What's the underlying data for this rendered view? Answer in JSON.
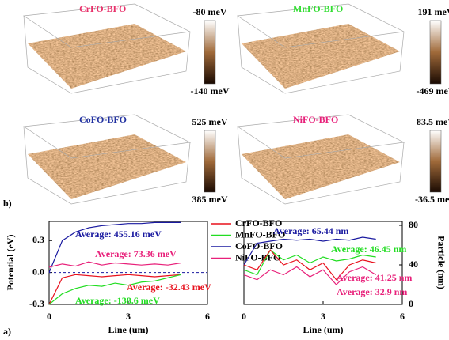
{
  "panels": [
    {
      "title": "CrFO-BFO",
      "title_color": "#e8306a",
      "colorbar": {
        "top": "-80 meV",
        "bottom": "-140 meV"
      }
    },
    {
      "title": "MnFO-BFO",
      "title_color": "#33dd33",
      "colorbar": {
        "top": "191 meV",
        "bottom": "-469 meV"
      }
    },
    {
      "title": "CoFO-BFO",
      "title_color": "#2030a0",
      "colorbar": {
        "top": "525 meV",
        "bottom": "385 meV"
      }
    },
    {
      "title": "NiFO-BFO",
      "title_color": "#e8207a",
      "colorbar": {
        "top": "83.5 meV",
        "bottom": "-36.5 meV"
      }
    }
  ],
  "figure_labels": [
    "b)",
    "a)"
  ],
  "chart_data": [
    {
      "type": "line",
      "x_label": "Line (um)",
      "y_label": "Potential (eV)",
      "x": [
        0,
        0.5,
        1,
        1.5,
        2,
        2.5,
        3,
        3.5,
        4,
        4.5,
        5
      ],
      "xlim": [
        0,
        6
      ],
      "xticks": [
        0,
        3,
        6
      ],
      "ylim": [
        -0.3,
        0.48
      ],
      "yticks": [
        {
          "value": -0.3,
          "label": "-0.3"
        },
        {
          "value": 0,
          "label": "0.0"
        },
        {
          "value": 0.3,
          "label": "0.3"
        }
      ],
      "series": [
        {
          "name": "CrFO-BFO",
          "color": "#e8101c",
          "values": [
            -0.3,
            -0.05,
            -0.02,
            -0.03,
            -0.04,
            -0.03,
            -0.02,
            -0.03,
            -0.04,
            -0.03,
            -0.02
          ]
        },
        {
          "name": "MnFO-BFO",
          "color": "#22dd22",
          "values": [
            -0.3,
            -0.2,
            -0.15,
            -0.12,
            -0.13,
            -0.1,
            -0.12,
            -0.09,
            -0.08,
            -0.05,
            -0.02
          ]
        },
        {
          "name": "CoFO-BFO",
          "color": "#1a1aa0",
          "values": [
            0,
            0.3,
            0.38,
            0.42,
            0.44,
            0.45,
            0.46,
            0.46,
            0.47,
            0.47,
            0.47
          ]
        },
        {
          "name": "NiFO-BFO",
          "color": "#e8207a",
          "values": [
            0.05,
            0.08,
            0.06,
            0.1,
            0.07,
            0.09,
            0.08,
            0.07,
            0.08,
            0.07,
            0.09
          ]
        }
      ],
      "annotations": [
        {
          "text": "Average: 455.16 meV",
          "color": "#1a1aa0"
        },
        {
          "text": "Average: 73.36 meV",
          "color": "#e8207a"
        },
        {
          "text": "Average: -32.43 meV",
          "color": "#e8101c"
        },
        {
          "text": "Average: -138.6 meV",
          "color": "#22dd22"
        }
      ]
    },
    {
      "type": "line",
      "x_label": "Line (um)",
      "y_label": "Particle (nm)",
      "x": [
        0,
        0.5,
        1,
        1.5,
        2,
        2.5,
        3,
        3.5,
        4,
        4.5,
        5
      ],
      "xlim": [
        0,
        6
      ],
      "xticks": [
        0,
        3,
        6
      ],
      "ylim": [
        0,
        84
      ],
      "yticks": [
        0,
        40,
        80
      ],
      "series": [
        {
          "color": "#1a1aa0",
          "values": [
            40,
            62,
            64,
            66,
            65,
            66,
            64,
            66,
            65,
            68,
            66
          ]
        },
        {
          "color": "#22dd22",
          "values": [
            35,
            30,
            55,
            45,
            50,
            42,
            48,
            44,
            46,
            50,
            48
          ]
        },
        {
          "color": "#e8101c",
          "values": [
            40,
            35,
            55,
            40,
            45,
            35,
            42,
            25,
            40,
            45,
            42
          ]
        },
        {
          "color": "#e8207a",
          "values": [
            30,
            25,
            35,
            30,
            38,
            28,
            35,
            20,
            33,
            38,
            30
          ]
        }
      ],
      "annotations": [
        {
          "text": "Average: 65.44 nm",
          "color": "#1a1aa0"
        },
        {
          "text": "Average: 46.45 nm",
          "color": "#22dd22"
        },
        {
          "text": "Average: 41.25 nm",
          "color": "#e8207a"
        },
        {
          "text": "Average: 32.9 nm",
          "color": "#e8207a"
        }
      ]
    }
  ]
}
